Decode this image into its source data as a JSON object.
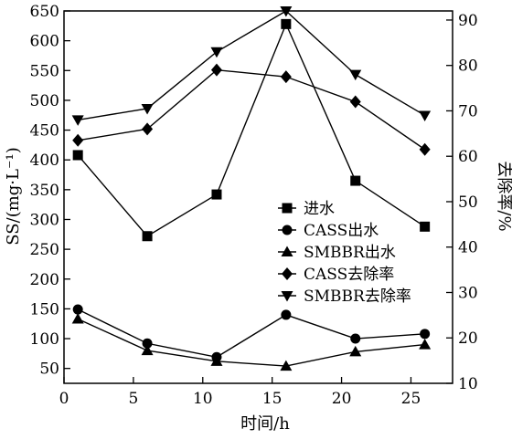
{
  "chart_data": {
    "type": "line",
    "title": "",
    "xlabel": "时间/h",
    "ylabel_left": "SS/(mg·L⁻¹)",
    "ylabel_right": "去除率/%",
    "xlim": [
      0,
      28
    ],
    "ylim_left": [
      25,
      650
    ],
    "ylim_right": [
      10,
      92
    ],
    "xticks": [
      0,
      5,
      10,
      15,
      20,
      25
    ],
    "yticks_left": [
      50,
      100,
      150,
      200,
      250,
      300,
      350,
      400,
      450,
      500,
      550,
      600,
      650
    ],
    "yticks_right": [
      10,
      20,
      30,
      40,
      50,
      60,
      70,
      80,
      90
    ],
    "grid": false,
    "legend_position": "center-right",
    "x": [
      1,
      6,
      11,
      16,
      21,
      26
    ],
    "series": [
      {
        "name": "进水",
        "axis": "left",
        "marker": "square",
        "values": [
          408,
          272,
          342,
          628,
          365,
          288
        ]
      },
      {
        "name": "CASS出水",
        "axis": "left",
        "marker": "circle",
        "values": [
          149,
          92,
          69,
          140,
          100,
          108
        ]
      },
      {
        "name": "SMBBR出水",
        "axis": "left",
        "marker": "triangle-up",
        "values": [
          133,
          80,
          62,
          54,
          78,
          90
        ]
      },
      {
        "name": "CASS去除率",
        "axis": "right",
        "marker": "diamond",
        "values": [
          63.5,
          66,
          79,
          77.5,
          72,
          61.5
        ]
      },
      {
        "name": "SMBBR去除率",
        "axis": "right",
        "marker": "triangle-down",
        "values": [
          68,
          70.5,
          83,
          92,
          78,
          69
        ]
      }
    ]
  }
}
